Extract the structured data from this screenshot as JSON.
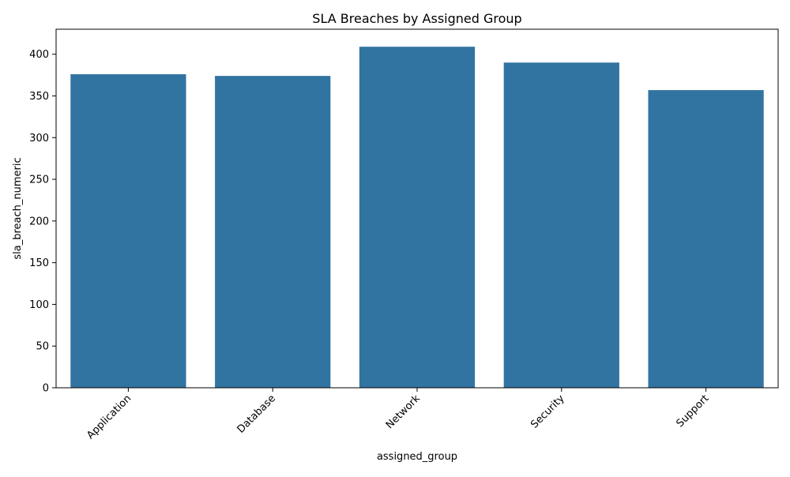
{
  "chart_data": {
    "type": "bar",
    "title": "SLA Breaches by Assigned Group",
    "xlabel": "assigned_group",
    "ylabel": "sla_breach_numeric",
    "categories": [
      "Application",
      "Database",
      "Network",
      "Security",
      "Support"
    ],
    "values": [
      376,
      374,
      409,
      390,
      357
    ],
    "ylim": [
      0,
      430
    ],
    "yticks": [
      0,
      50,
      100,
      150,
      200,
      250,
      300,
      350,
      400
    ],
    "x_tick_rotation_deg": 45,
    "grid": false,
    "legend": "none",
    "bar_color": "#3274a1"
  }
}
